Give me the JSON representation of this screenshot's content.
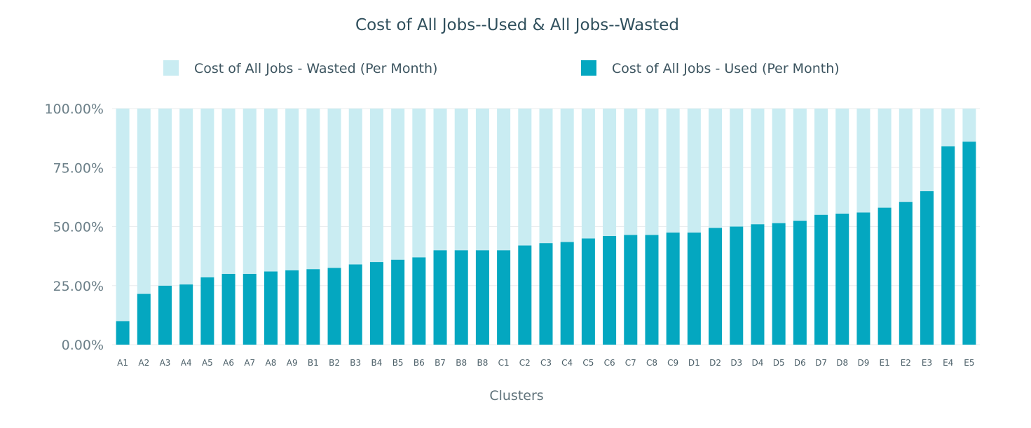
{
  "chart_data": {
    "type": "bar",
    "stacked": true,
    "title": "Cost of All Jobs--Used & All Jobs--Wasted",
    "xlabel": "Clusters",
    "ylabel": "",
    "ylim": [
      0,
      100
    ],
    "y_ticks": [
      "0.00%",
      "25.00%",
      "50.00%",
      "75.00%",
      "100.00%"
    ],
    "grid": true,
    "legend_position": "top",
    "categories": [
      "A1",
      "A2",
      "A3",
      "A4",
      "A5",
      "A6",
      "A7",
      "A8",
      "A9",
      "B1",
      "B2",
      "B3",
      "B4",
      "B5",
      "B6",
      "B7",
      "B8",
      "B8",
      "C1",
      "C2",
      "C3",
      "C4",
      "C5",
      "C6",
      "C7",
      "C8",
      "C9",
      "D1",
      "D2",
      "D3",
      "D4",
      "D5",
      "D6",
      "D7",
      "D8",
      "D9",
      "E1",
      "E2",
      "E3",
      "E4",
      "E5"
    ],
    "series": [
      {
        "name": "Cost of All Jobs - Used (Per Month)",
        "color": "#04a7c0",
        "values": [
          10,
          21.5,
          25,
          25.5,
          28.5,
          30,
          30,
          31,
          31.5,
          32,
          32.5,
          34,
          35,
          36,
          37,
          40,
          40,
          40,
          40,
          42,
          43,
          43.5,
          45,
          46,
          46.5,
          46.5,
          47.5,
          47.5,
          49.5,
          50,
          51,
          51.5,
          52.5,
          55,
          55.5,
          56,
          58,
          60.5,
          65,
          84,
          86
        ]
      },
      {
        "name": "Cost of All Jobs - Wasted (Per Month)",
        "color": "#c9ecf2",
        "values": [
          90,
          78.5,
          75,
          74.5,
          71.5,
          70,
          70,
          69,
          68.5,
          68,
          67.5,
          66,
          65,
          64,
          63,
          60,
          60,
          60,
          60,
          58,
          57,
          56.5,
          55,
          54,
          53.5,
          53.5,
          52.5,
          52.5,
          50.5,
          50,
          49,
          48.5,
          47.5,
          45,
          44.5,
          44,
          42,
          39.5,
          35,
          16,
          14
        ]
      }
    ],
    "legend": [
      {
        "label": "Cost of All Jobs - Wasted (Per Month)",
        "color": "#c9ecf2"
      },
      {
        "label": "Cost of All Jobs - Used (Per Month)",
        "color": "#04a7c0"
      }
    ]
  }
}
